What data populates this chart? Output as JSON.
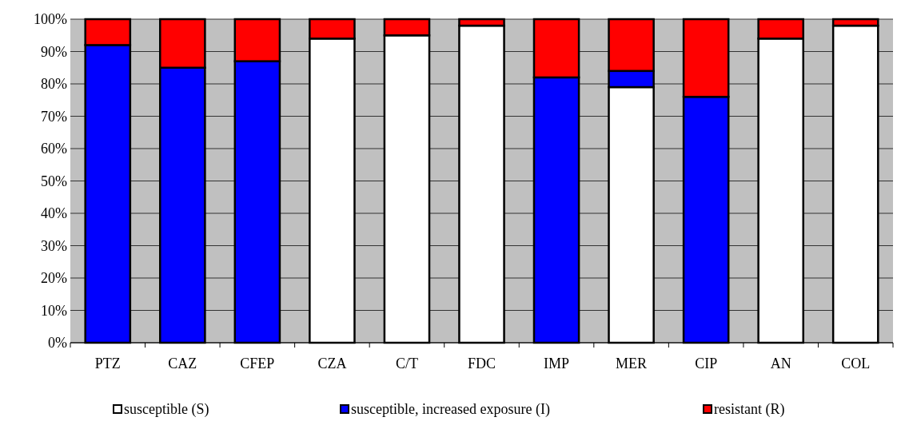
{
  "chart_data": {
    "type": "bar",
    "stacked": true,
    "categories": [
      "PTZ",
      "CAZ",
      "CFEP",
      "CZA",
      "C/T",
      "FDC",
      "IMP",
      "MER",
      "CIP",
      "AN",
      "COL"
    ],
    "series": [
      {
        "name": "susceptible (S)",
        "color": "#ffffff",
        "values": [
          0,
          0,
          0,
          94,
          95,
          98,
          0,
          79,
          0,
          94,
          98
        ]
      },
      {
        "name": "susceptible, increased exposure (I)",
        "color": "#0000ff",
        "values": [
          92,
          85,
          87,
          0,
          0,
          0,
          82,
          5,
          76,
          0,
          0
        ]
      },
      {
        "name": "resistant (R)",
        "color": "#ff0000",
        "values": [
          8,
          15,
          13,
          6,
          5,
          2,
          18,
          16,
          24,
          6,
          2
        ]
      }
    ],
    "ylim": [
      0,
      100
    ],
    "yticks": [
      {
        "value": 0,
        "label": "0%"
      },
      {
        "value": 10,
        "label": "10%"
      },
      {
        "value": 20,
        "label": "20%"
      },
      {
        "value": 30,
        "label": "30%"
      },
      {
        "value": 40,
        "label": "40%"
      },
      {
        "value": 50,
        "label": "50%"
      },
      {
        "value": 60,
        "label": "60%"
      },
      {
        "value": 70,
        "label": "70%"
      },
      {
        "value": 80,
        "label": "80%"
      },
      {
        "value": 90,
        "label": "90%"
      },
      {
        "value": 100,
        "label": "100%"
      }
    ],
    "grid": "y",
    "legend": "bottom"
  }
}
